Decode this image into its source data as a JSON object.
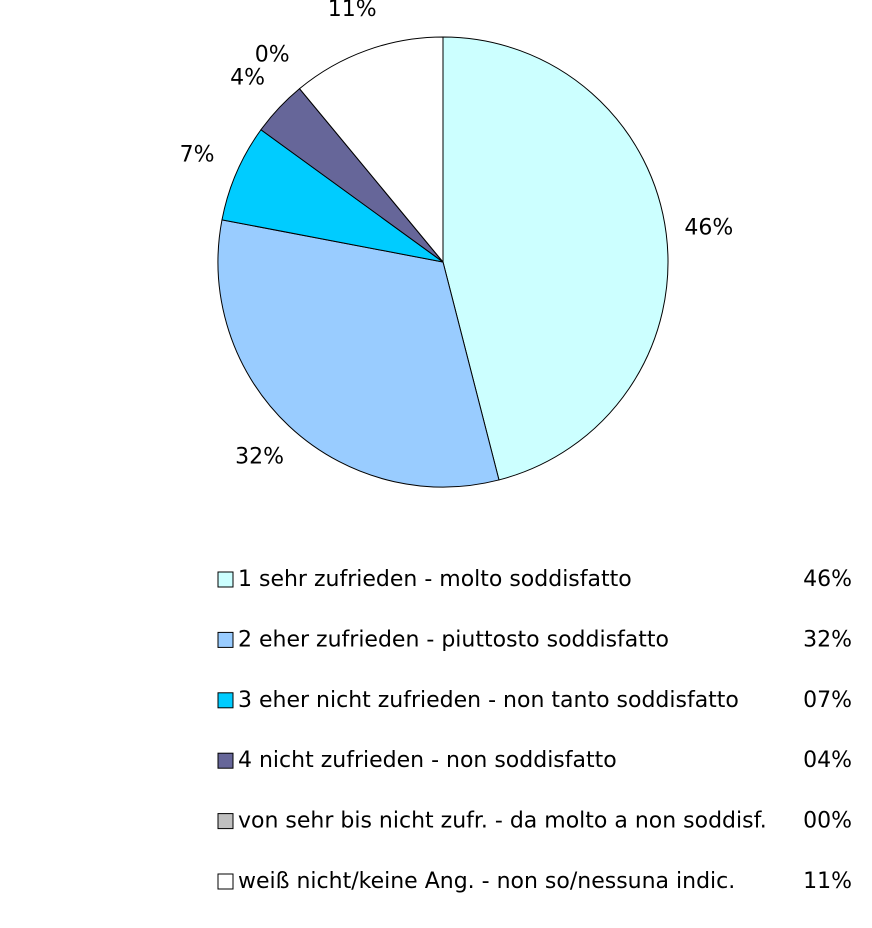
{
  "chart_data": {
    "type": "pie",
    "categories": [
      "1 sehr zufrieden - molto soddisfatto",
      "2 eher zufrieden - piuttosto soddisfatto",
      "3 eher nicht zufrieden - non tanto soddisfatto",
      "4 nicht zufrieden - non soddisfatto",
      "von sehr bis nicht zufr. - da molto a non soddisf.",
      "weiß nicht/keine Ang. - non so/nessuna indic."
    ],
    "values": [
      46,
      32,
      7,
      4,
      0,
      11
    ],
    "value_labels": [
      "46%",
      "32%",
      "7%",
      "4%",
      "0%",
      "11%"
    ],
    "legend_value_labels": [
      "46%",
      "32%",
      "07%",
      "04%",
      "00%",
      "11%"
    ],
    "colors": [
      "#ccffff",
      "#99ccff",
      "#00ccff",
      "#666699",
      "#c0c0c0",
      "#ffffff"
    ]
  }
}
